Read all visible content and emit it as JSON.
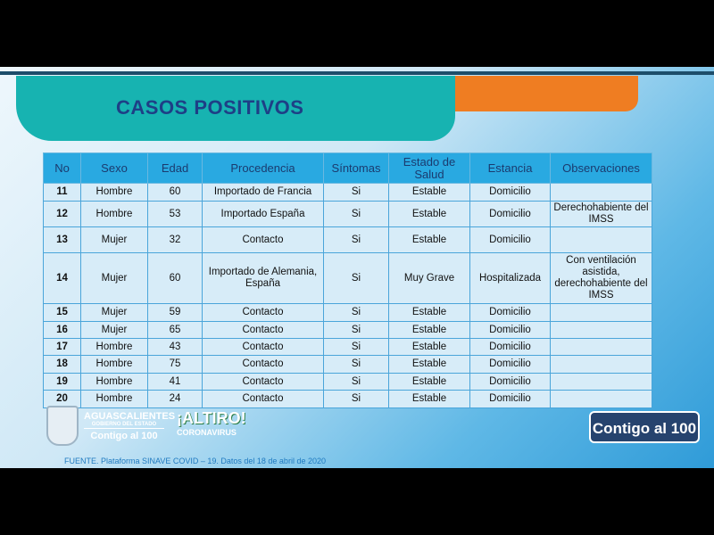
{
  "title": "CASOS POSITIVOS",
  "table": {
    "headers": [
      "No",
      "Sexo",
      "Edad",
      "Procedencia",
      "Síntomas",
      "Estado de Salud",
      "Estancia",
      "Observaciones"
    ],
    "rows": [
      [
        "11",
        "Hombre",
        "60",
        "Importado de Francia",
        "Si",
        "Estable",
        "Domicilio",
        ""
      ],
      [
        "12",
        "Hombre",
        "53",
        "Importado España",
        "Si",
        "Estable",
        "Domicilio",
        "Derechohabiente del IMSS"
      ],
      [
        "13",
        "Mujer",
        "32",
        "Contacto",
        "Si",
        "Estable",
        "Domicilio",
        ""
      ],
      [
        "14",
        "Mujer",
        "60",
        "Importado de Alemania, España",
        "Si",
        "Muy Grave",
        "Hospitalizada",
        "Con ventilación asistida, derechohabiente del IMSS"
      ],
      [
        "15",
        "Mujer",
        "59",
        "Contacto",
        "Si",
        "Estable",
        "Domicilio",
        ""
      ],
      [
        "16",
        "Mujer",
        "65",
        "Contacto",
        "Si",
        "Estable",
        "Domicilio",
        ""
      ],
      [
        "17",
        "Hombre",
        "43",
        "Contacto",
        "Si",
        "Estable",
        "Domicilio",
        ""
      ],
      [
        "18",
        "Hombre",
        "75",
        "Contacto",
        "Si",
        "Estable",
        "Domicilio",
        ""
      ],
      [
        "19",
        "Hombre",
        "41",
        "Contacto",
        "Si",
        "Estable",
        "Domicilio",
        ""
      ],
      [
        "20",
        "Hombre",
        "24",
        "Contacto",
        "Si",
        "Estable",
        "Domicilio",
        ""
      ]
    ]
  },
  "logos": {
    "state": "AGUASCALIENTES",
    "gov": "GOBIERNO DEL ESTADO",
    "slogan": "Contigo al 100",
    "altiro": "¡ALTIRO!",
    "altiro_sub": "CORONAVIRUS",
    "badge": "Contigo al 100"
  },
  "source": "FUENTE. Plataforma SINAVE COVID – 19. Datos del 18 de abril de 2020"
}
